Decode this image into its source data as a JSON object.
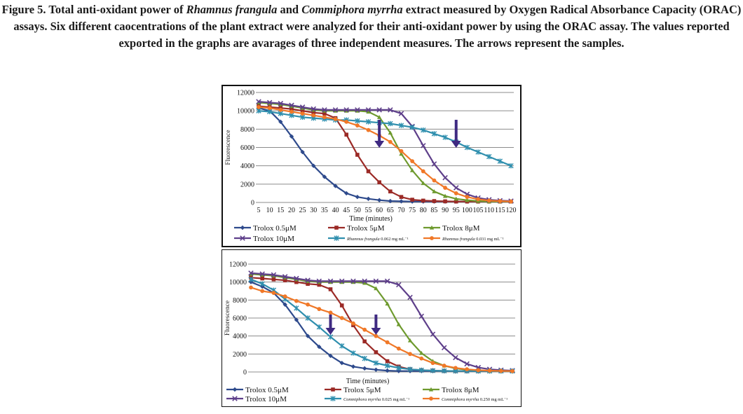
{
  "caption": {
    "lead": "Figure 5. Total anti-oxidant power of ",
    "sp1": "Rhamnus frangula",
    "mid1": " and ",
    "sp2": "Commiphora myrrha",
    "rest": " extract measured by Oxygen Radical Absorbance Capacity (ORAC) assays. Six different caocentrations of the plant extract were analyzed for their anti-oxidant power by using the ORAC assay. The values reported exported in the graphs are avarages of three independent measures. The arrows represent the samples."
  },
  "colors": {
    "trolox_05": "#2e4a8c",
    "trolox_5": "#9b2a26",
    "trolox_8": "#6e9a2e",
    "trolox_10": "#5e3f8a",
    "sample_low": "#2f8fae",
    "sample_high": "#f07828",
    "arrow": "#3f2a82",
    "grid": "#8c8c8c"
  },
  "chart_data": [
    {
      "type": "line",
      "title": "",
      "xlabel": "Time (minutes)",
      "ylabel": "Fluorescence",
      "x": [
        5,
        10,
        15,
        20,
        25,
        30,
        35,
        40,
        45,
        50,
        55,
        60,
        65,
        70,
        75,
        80,
        85,
        90,
        95,
        100,
        105,
        110,
        115,
        120
      ],
      "x_tick_labels": [
        "5",
        "10",
        "15",
        "20",
        "25",
        "30",
        "35",
        "40",
        "45",
        "50",
        "55",
        "60",
        "65",
        "70",
        "75",
        "80",
        "85",
        "90",
        "95",
        "100",
        "105",
        "110",
        "115",
        "120"
      ],
      "ylim": [
        0,
        12000
      ],
      "y_ticks": [
        "0",
        "2000",
        "4000",
        "6000",
        "8000",
        "10000",
        "12000"
      ],
      "grid": true,
      "legend_position": "bottom",
      "arrows_x": [
        60,
        95
      ],
      "series": [
        {
          "name": "Trolox 0.5μM",
          "color_key": "trolox_05",
          "marker": "diamond",
          "values": [
            10300,
            10000,
            8800,
            7200,
            5500,
            4000,
            2800,
            1800,
            1000,
            600,
            400,
            250,
            150,
            120,
            100,
            100,
            100,
            100,
            100,
            100,
            100,
            100,
            100,
            100
          ]
        },
        {
          "name": "Trolox 5μM",
          "color_key": "trolox_5",
          "marker": "square",
          "values": [
            10500,
            10400,
            10300,
            10200,
            10000,
            9800,
            9700,
            9200,
            7400,
            5200,
            3400,
            2200,
            1200,
            600,
            300,
            200,
            150,
            120,
            100,
            100,
            100,
            100,
            100,
            100
          ]
        },
        {
          "name": "Trolox 8μM",
          "color_key": "trolox_8",
          "marker": "triangle",
          "values": [
            10900,
            10800,
            10700,
            10500,
            10300,
            10100,
            10000,
            10000,
            10000,
            10000,
            9900,
            9300,
            7600,
            5300,
            3500,
            2100,
            1200,
            700,
            400,
            250,
            150,
            100,
            100,
            100
          ]
        },
        {
          "name": "Trolox 10μM",
          "color_key": "trolox_10",
          "marker": "x",
          "values": [
            11000,
            10900,
            10800,
            10600,
            10400,
            10200,
            10100,
            10100,
            10100,
            10100,
            10100,
            10100,
            10100,
            9700,
            8300,
            6200,
            4200,
            2700,
            1600,
            900,
            500,
            300,
            200,
            150
          ]
        },
        {
          "name": "Rhamnus frangula 0.062 mg mL⁻¹",
          "color_key": "sample_low",
          "marker": "star",
          "italic_part": "Rhamnus frangula",
          "plain_part": " 0.062 mg mL⁻¹",
          "values": [
            10000,
            9900,
            9700,
            9500,
            9300,
            9200,
            9100,
            9000,
            9000,
            8900,
            8800,
            8700,
            8600,
            8400,
            8200,
            7900,
            7500,
            7100,
            6600,
            6000,
            5500,
            5000,
            4500,
            4000
          ]
        },
        {
          "name": "Rhamnus frangula 0.031 mg mL⁻¹",
          "color_key": "sample_high",
          "marker": "circle",
          "italic_part": "Rhamnus frangula",
          "plain_part": " 0.031 mg mL⁻¹",
          "values": [
            10400,
            10300,
            10100,
            9900,
            9700,
            9500,
            9300,
            9100,
            8800,
            8400,
            7900,
            7300,
            6600,
            5600,
            4500,
            3400,
            2400,
            1600,
            1000,
            600,
            350,
            200,
            150,
            100
          ]
        }
      ]
    },
    {
      "type": "line",
      "title": "",
      "xlabel": "Time (minutes)",
      "ylabel": "Fluorescence",
      "x": [
        5,
        10,
        15,
        20,
        25,
        30,
        35,
        40,
        45,
        50,
        55,
        60,
        65,
        70,
        75,
        80,
        85,
        90,
        95,
        100,
        105,
        110,
        115,
        120
      ],
      "x_tick_labels": [],
      "ylim": [
        0,
        12000
      ],
      "y_ticks": [
        "0",
        "2000",
        "4000",
        "6000",
        "8000",
        "10000",
        "12000"
      ],
      "grid": true,
      "legend_position": "bottom",
      "arrows_x": [
        40,
        60
      ],
      "series": [
        {
          "name": "Trolox 0.5μM",
          "color_key": "trolox_05",
          "marker": "diamond",
          "values": [
            10000,
            9500,
            8800,
            7500,
            5800,
            4000,
            2800,
            1800,
            1000,
            600,
            400,
            250,
            150,
            100,
            100,
            100,
            100,
            100,
            100,
            100,
            100,
            100,
            100,
            100
          ]
        },
        {
          "name": "Trolox 5μM",
          "color_key": "trolox_5",
          "marker": "square",
          "values": [
            10500,
            10400,
            10300,
            10200,
            10000,
            9800,
            9700,
            9200,
            7400,
            5200,
            3400,
            2200,
            1200,
            600,
            300,
            200,
            150,
            120,
            100,
            100,
            100,
            100,
            100,
            100
          ]
        },
        {
          "name": "Trolox 8μM",
          "color_key": "trolox_8",
          "marker": "triangle",
          "values": [
            10900,
            10800,
            10700,
            10500,
            10300,
            10100,
            10000,
            10000,
            10000,
            10000,
            9900,
            9300,
            7600,
            5300,
            3500,
            2100,
            1200,
            700,
            400,
            250,
            150,
            100,
            100,
            100
          ]
        },
        {
          "name": "Trolox 10μM",
          "color_key": "trolox_10",
          "marker": "x",
          "values": [
            11000,
            10900,
            10800,
            10600,
            10400,
            10200,
            10100,
            10100,
            10100,
            10100,
            10100,
            10100,
            10100,
            9700,
            8300,
            6200,
            4200,
            2700,
            1600,
            900,
            500,
            300,
            200,
            150
          ]
        },
        {
          "name": "Commiphora myrrha 0.025 mg mL⁻¹",
          "color_key": "sample_low",
          "marker": "star",
          "italic_part": "Commiphora myrrha",
          "plain_part": " 0.025 mg mL⁻¹",
          "values": [
            10300,
            9800,
            9100,
            8100,
            7100,
            6000,
            5000,
            3900,
            2900,
            2100,
            1500,
            1000,
            700,
            450,
            300,
            200,
            150,
            120,
            100,
            100,
            100,
            100,
            100,
            100
          ]
        },
        {
          "name": "Commiphora myrrha 0.250 mg mL⁻¹",
          "color_key": "sample_high",
          "marker": "circle",
          "italic_part": "Commiphora myrrha",
          "plain_part": " 0.250 mg mL⁻¹",
          "values": [
            9400,
            9000,
            8800,
            8400,
            7900,
            7500,
            7000,
            6600,
            6000,
            5400,
            4700,
            4000,
            3300,
            2600,
            2000,
            1500,
            1000,
            700,
            450,
            300,
            200,
            150,
            120,
            100
          ]
        }
      ]
    }
  ]
}
